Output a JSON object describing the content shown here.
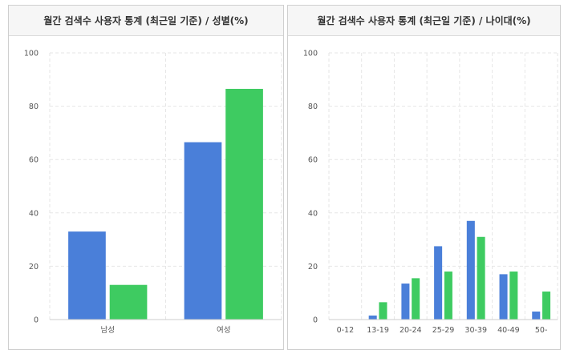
{
  "charts": [
    {
      "id": "gender",
      "title": "월간 검색수 사용자 통계 (최근일 기준) / 성별(%)",
      "chart_data": {
        "type": "bar",
        "title": "월간 검색수 사용자 통계 (최근일 기준) / 성별(%)",
        "categories": [
          "남성",
          "여성"
        ],
        "series": [
          {
            "color": "#4a7fd9",
            "values": [
              33,
              66.5
            ]
          },
          {
            "color": "#3ecb61",
            "values": [
              13,
              86.5
            ]
          }
        ],
        "ylim": [
          0,
          100
        ],
        "yticks": [
          0,
          20,
          40,
          60,
          80,
          100
        ],
        "grid": true,
        "legend": "none"
      }
    },
    {
      "id": "age",
      "title": "월간 검색수 사용자 통계 (최근일 기준) / 나이대(%)",
      "chart_data": {
        "type": "bar",
        "title": "월간 검색수 사용자 통계 (최근일 기준) / 나이대(%)",
        "categories": [
          "0-12",
          "13-19",
          "20-24",
          "25-29",
          "30-39",
          "40-49",
          "50-"
        ],
        "series": [
          {
            "color": "#4a7fd9",
            "values": [
              0,
              1.5,
              13.5,
              27.5,
              37,
              17,
              3
            ]
          },
          {
            "color": "#3ecb61",
            "values": [
              0,
              6.5,
              15.5,
              18,
              31,
              18,
              10.5
            ]
          }
        ],
        "ylim": [
          0,
          100
        ],
        "yticks": [
          0,
          20,
          40,
          60,
          80,
          100
        ],
        "grid": true,
        "legend": "none"
      }
    }
  ]
}
